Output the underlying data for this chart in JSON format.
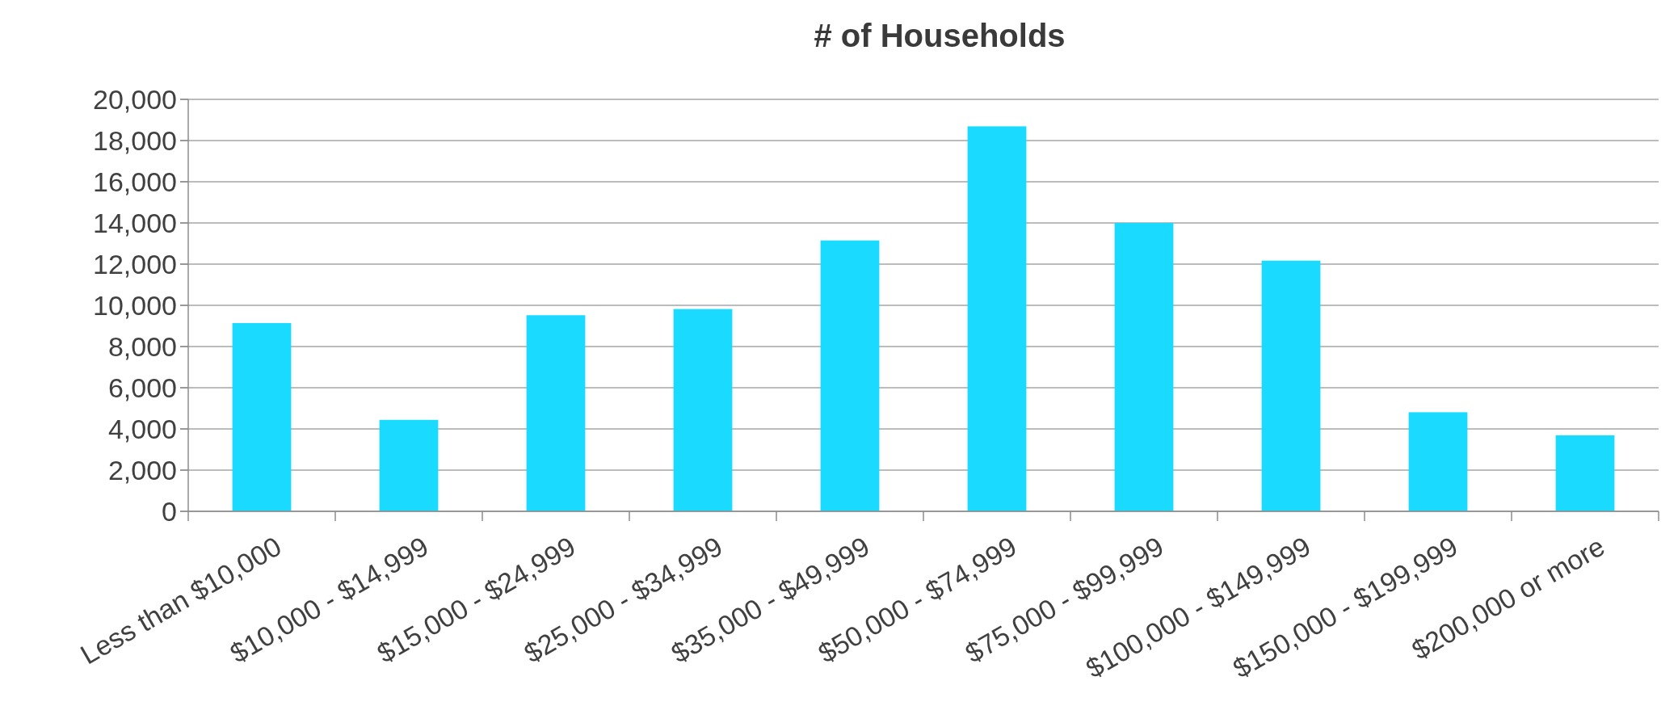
{
  "chart_data": {
    "type": "bar",
    "title": "# of Households",
    "categories": [
      "Less than $10,000",
      "$10,000 - $14,999",
      "$15,000 - $24,999",
      "$25,000 - $34,999",
      "$35,000 - $49,999",
      "$50,000 - $74,999",
      "$75,000 - $99,999",
      "$100,000 - $149,999",
      "$150,000 - $199,999",
      "$200,000 or more"
    ],
    "values": [
      9140,
      4440,
      9520,
      9820,
      13150,
      18690,
      14000,
      12170,
      4810,
      3690
    ],
    "color": "#1adbff",
    "ylim": [
      0,
      20000
    ],
    "yticks": [
      {
        "value": 0,
        "label": "0"
      },
      {
        "value": 2000,
        "label": "2,000"
      },
      {
        "value": 4000,
        "label": "4,000"
      },
      {
        "value": 6000,
        "label": "6,000"
      },
      {
        "value": 8000,
        "label": "8,000"
      },
      {
        "value": 10000,
        "label": "10,000"
      },
      {
        "value": 12000,
        "label": "12,000"
      },
      {
        "value": 14000,
        "label": "14,000"
      },
      {
        "value": 16000,
        "label": "16,000"
      },
      {
        "value": 18000,
        "label": "18,000"
      },
      {
        "value": 20000,
        "label": "20,000"
      }
    ],
    "grid": "y"
  }
}
